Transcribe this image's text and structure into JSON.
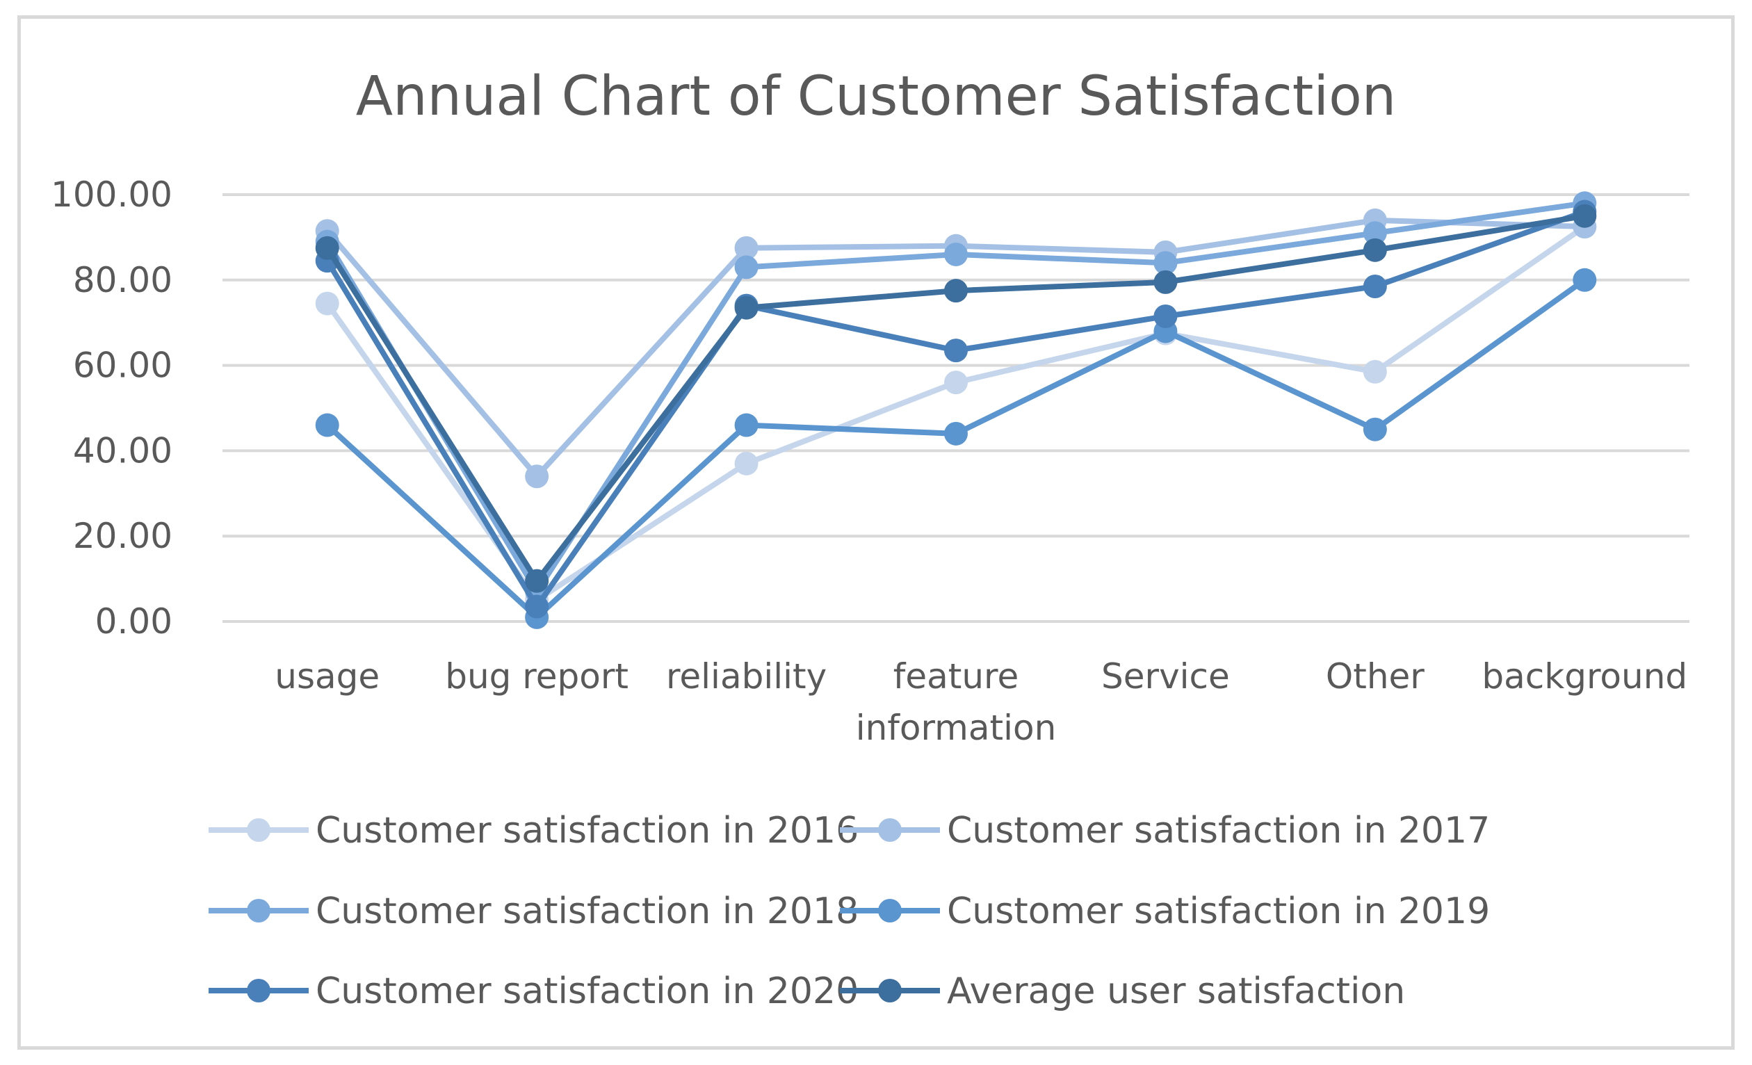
{
  "chart_data": {
    "type": "line",
    "title": "Annual Chart of Customer Satisfaction",
    "xlabel": "",
    "ylabel": "",
    "ylim": [
      0,
      100
    ],
    "ytick_step": 20,
    "ytick_labels": [
      "0.00",
      "20.00",
      "40.00",
      "60.00",
      "80.00",
      "100.00"
    ],
    "grid": true,
    "legend_position": "bottom",
    "categories": [
      [
        "usage"
      ],
      [
        "bug report"
      ],
      [
        "reliability"
      ],
      [
        "feature",
        "information"
      ],
      [
        "Service"
      ],
      [
        "Other"
      ],
      [
        "background"
      ]
    ],
    "series": [
      {
        "name": "Customer satisfaction in 2016",
        "color": "#c5d6ec",
        "values": [
          74.5,
          5.0,
          37.0,
          56.0,
          67.5,
          58.5,
          92.5
        ]
      },
      {
        "name": "Customer satisfaction in 2017",
        "color": "#a4c1e5",
        "values": [
          91.5,
          34.0,
          87.5,
          88.0,
          86.5,
          94.0,
          92.5
        ]
      },
      {
        "name": "Customer satisfaction in 2018",
        "color": "#7ba9dc",
        "values": [
          89.0,
          7.0,
          83.0,
          86.0,
          84.0,
          91.0,
          98.0
        ]
      },
      {
        "name": "Customer satisfaction in 2019",
        "color": "#5a95d0",
        "values": [
          46.0,
          1.0,
          46.0,
          44.0,
          68.0,
          45.0,
          80.0
        ]
      },
      {
        "name": "Customer satisfaction in 2020",
        "color": "#4a80ba",
        "values": [
          84.5,
          3.5,
          74.0,
          63.5,
          71.5,
          78.5,
          96.0
        ]
      },
      {
        "name": "Average user satisfaction",
        "color": "#3c6e9e",
        "values": [
          87.5,
          9.5,
          73.5,
          77.5,
          79.5,
          87.0,
          95.0
        ]
      }
    ]
  }
}
